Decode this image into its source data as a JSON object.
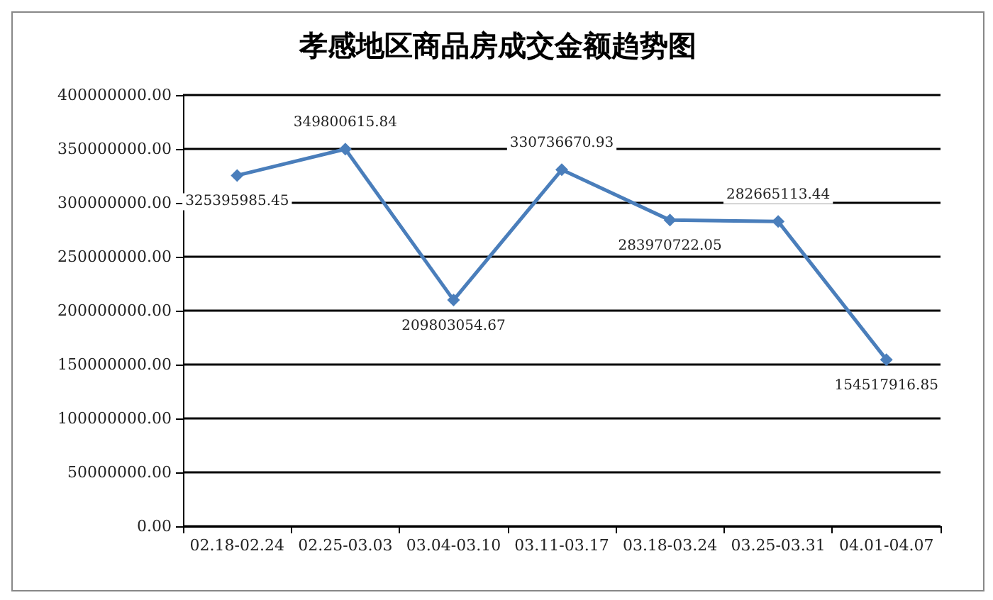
{
  "chart_data": {
    "type": "line",
    "title": "孝感地区商品房成交金额趋势图",
    "categories": [
      "02.18-02.24",
      "02.25-03.03",
      "03.04-03.10",
      "03.11-03.17",
      "03.18-03.24",
      "03.25-03.31",
      "04.01-04.07"
    ],
    "series": [
      {
        "color": "#4a7ebb",
        "values": [
          325395985.45,
          349800615.84,
          209803054.67,
          330736670.93,
          283970722.05,
          282665113.44,
          154517916.85
        ]
      }
    ],
    "data_labels": true,
    "ylim": [
      0,
      400000000
    ],
    "yticks": [
      {
        "value": 0,
        "label": "0.00"
      },
      {
        "value": 50000000,
        "label": "50000000.00"
      },
      {
        "value": 100000000,
        "label": "100000000.00"
      },
      {
        "value": 150000000,
        "label": "150000000.00"
      },
      {
        "value": 200000000,
        "label": "200000000.00"
      },
      {
        "value": 250000000,
        "label": "250000000.00"
      },
      {
        "value": 300000000,
        "label": "300000000.00"
      },
      {
        "value": 350000000,
        "label": "350000000.00"
      },
      {
        "value": 400000000,
        "label": "400000000.00"
      }
    ],
    "grid": "y",
    "marker": "diamond",
    "line_style": "solid"
  }
}
